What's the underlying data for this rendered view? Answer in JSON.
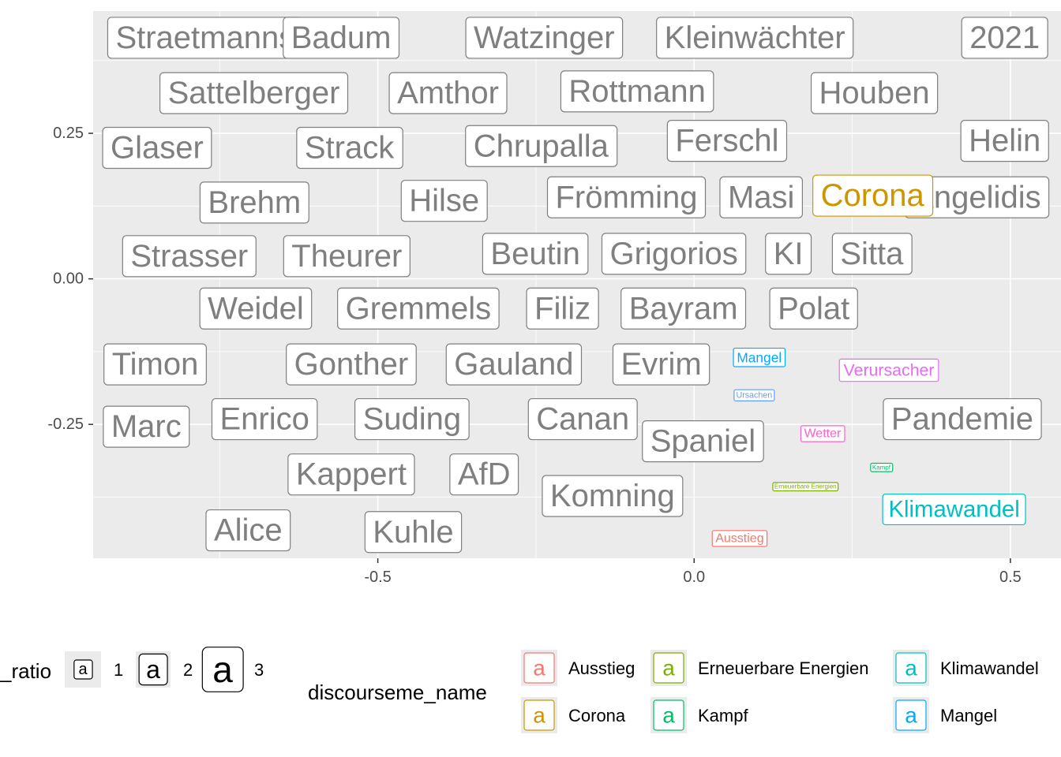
{
  "chart_data": {
    "type": "scatter",
    "subtype": "text-label-scatter",
    "xlim": [
      -0.95,
      0.58
    ],
    "ylim": [
      -0.48,
      0.46
    ],
    "x_ticks": [
      {
        "value": -0.5,
        "label": "-0.5"
      },
      {
        "value": 0.0,
        "label": "0.0"
      },
      {
        "value": 0.5,
        "label": "0.5"
      }
    ],
    "y_ticks": [
      {
        "value": 0.25,
        "label": "0.25"
      },
      {
        "value": 0.0,
        "label": "0.00"
      },
      {
        "value": -0.25,
        "label": "-0.25"
      }
    ],
    "grid": true,
    "legend_position": "bottom",
    "panel_background": "#ebebeb",
    "default_label_color": "#7f7f7f",
    "points": [
      {
        "label": "Straetmanns",
        "x": -0.773,
        "y": 0.414,
        "size": 3,
        "group": null
      },
      {
        "label": "Badum",
        "x": -0.558,
        "y": 0.414,
        "size": 3,
        "group": null
      },
      {
        "label": "Watzinger",
        "x": -0.237,
        "y": 0.414,
        "size": 3,
        "group": null
      },
      {
        "label": "Kleinwächter",
        "x": 0.096,
        "y": 0.414,
        "size": 3,
        "group": null
      },
      {
        "label": "2021",
        "x": 0.491,
        "y": 0.414,
        "size": 3,
        "group": null
      },
      {
        "label": "Sattelberger",
        "x": -0.696,
        "y": 0.319,
        "size": 3,
        "group": null
      },
      {
        "label": "Amthor",
        "x": -0.389,
        "y": 0.319,
        "size": 3,
        "group": null
      },
      {
        "label": "Rottmann",
        "x": -0.09,
        "y": 0.322,
        "size": 3,
        "group": null
      },
      {
        "label": "Houben",
        "x": 0.285,
        "y": 0.319,
        "size": 3,
        "group": null
      },
      {
        "label": "Glaser",
        "x": -0.849,
        "y": 0.225,
        "size": 3,
        "group": null
      },
      {
        "label": "Strack",
        "x": -0.545,
        "y": 0.225,
        "size": 3,
        "group": null
      },
      {
        "label": "Chrupalla",
        "x": -0.242,
        "y": 0.228,
        "size": 3,
        "group": null
      },
      {
        "label": "Ferschl",
        "x": 0.052,
        "y": 0.237,
        "size": 3,
        "group": null
      },
      {
        "label": "Helin",
        "x": 0.491,
        "y": 0.237,
        "size": 3,
        "group": null
      },
      {
        "label": "Brehm",
        "x": -0.695,
        "y": 0.131,
        "size": 3,
        "group": null
      },
      {
        "label": "Hilse",
        "x": -0.395,
        "y": 0.134,
        "size": 3,
        "group": null
      },
      {
        "label": "Frömming",
        "x": -0.107,
        "y": 0.14,
        "size": 3,
        "group": null
      },
      {
        "label": "Masi",
        "x": 0.106,
        "y": 0.14,
        "size": 3,
        "group": null
      },
      {
        "label": "Angelidis",
        "x": 0.447,
        "y": 0.14,
        "size": 3,
        "group": null
      },
      {
        "label": "Corona",
        "x": 0.282,
        "y": 0.143,
        "size": 3,
        "group": "Corona"
      },
      {
        "label": "Strasser",
        "x": -0.798,
        "y": 0.039,
        "size": 3,
        "group": null
      },
      {
        "label": "Theurer",
        "x": -0.549,
        "y": 0.039,
        "size": 3,
        "group": null
      },
      {
        "label": "Beutin",
        "x": -0.251,
        "y": 0.043,
        "size": 3,
        "group": null
      },
      {
        "label": "Grigorios",
        "x": -0.032,
        "y": 0.043,
        "size": 3,
        "group": null
      },
      {
        "label": "KI",
        "x": 0.149,
        "y": 0.043,
        "size": 3,
        "group": null
      },
      {
        "label": "Sitta",
        "x": 0.281,
        "y": 0.043,
        "size": 3,
        "group": null
      },
      {
        "label": "Weidel",
        "x": -0.693,
        "y": -0.051,
        "size": 3,
        "group": null
      },
      {
        "label": "Gremmels",
        "x": -0.436,
        "y": -0.051,
        "size": 3,
        "group": null
      },
      {
        "label": "Filiz",
        "x": -0.208,
        "y": -0.051,
        "size": 3,
        "group": null
      },
      {
        "label": "Bayram",
        "x": -0.017,
        "y": -0.051,
        "size": 3,
        "group": null
      },
      {
        "label": "Polat",
        "x": 0.189,
        "y": -0.051,
        "size": 3,
        "group": null
      },
      {
        "label": "Timon",
        "x": -0.852,
        "y": -0.147,
        "size": 3,
        "group": null
      },
      {
        "label": "Gonther",
        "x": -0.542,
        "y": -0.147,
        "size": 3,
        "group": null
      },
      {
        "label": "Gauland",
        "x": -0.285,
        "y": -0.147,
        "size": 3,
        "group": null
      },
      {
        "label": "Evrim",
        "x": -0.052,
        "y": -0.147,
        "size": 3,
        "group": null
      },
      {
        "label": "Mangel",
        "x": 0.103,
        "y": -0.135,
        "size": 1.3,
        "group": "Mangel"
      },
      {
        "label": "Verursacher",
        "x": 0.308,
        "y": -0.157,
        "size": 1.6,
        "group": "Verursacher"
      },
      {
        "label": "Ursachen",
        "x": 0.095,
        "y": -0.2,
        "size": 0.8,
        "group": "Ursachen"
      },
      {
        "label": "Marc",
        "x": -0.866,
        "y": -0.254,
        "size": 3,
        "group": null
      },
      {
        "label": "Enrico",
        "x": -0.679,
        "y": -0.241,
        "size": 3,
        "group": null
      },
      {
        "label": "Suding",
        "x": -0.446,
        "y": -0.241,
        "size": 3,
        "group": null
      },
      {
        "label": "Canan",
        "x": -0.176,
        "y": -0.241,
        "size": 3,
        "group": null
      },
      {
        "label": "Spaniel",
        "x": 0.014,
        "y": -0.279,
        "size": 3,
        "group": null
      },
      {
        "label": "Wetter",
        "x": 0.203,
        "y": -0.266,
        "size": 1.2,
        "group": "Wetter"
      },
      {
        "label": "Pandemie",
        "x": 0.424,
        "y": -0.241,
        "size": 3,
        "group": null
      },
      {
        "label": "Kampf",
        "x": 0.296,
        "y": -0.324,
        "size": 0.6,
        "group": "Kampf"
      },
      {
        "label": "Kappert",
        "x": -0.542,
        "y": -0.336,
        "size": 3,
        "group": null
      },
      {
        "label": "AfD",
        "x": -0.332,
        "y": -0.336,
        "size": 3,
        "group": null
      },
      {
        "label": "Komning",
        "x": -0.129,
        "y": -0.373,
        "size": 3,
        "group": null
      },
      {
        "label": "Erneuerbare Energien",
        "x": 0.176,
        "y": -0.357,
        "size": 0.6,
        "group": "Erneuerbare Energien"
      },
      {
        "label": "Klimawandel",
        "x": 0.411,
        "y": -0.396,
        "size": 2.2,
        "group": "Klimawandel"
      },
      {
        "label": "Alice",
        "x": -0.705,
        "y": -0.432,
        "size": 3,
        "group": null
      },
      {
        "label": "Kuhle",
        "x": -0.444,
        "y": -0.435,
        "size": 3,
        "group": null
      },
      {
        "label": "Ausstieg",
        "x": 0.072,
        "y": -0.446,
        "size": 1.2,
        "group": "Ausstieg"
      }
    ]
  },
  "colors": {
    "Ausstieg": "#F8766D",
    "Corona": "#CD9600",
    "Erneuerbare Energien": "#7CAE00",
    "Kampf": "#00BE67",
    "Klimawandel": "#00BFC4",
    "Mangel": "#00A9FF",
    "Ursachen": "#619CFF",
    "Verursacher": "#E76BF3",
    "Wetter": "#FF61C3"
  },
  "legend": {
    "size_title": "_ratio",
    "size_items": [
      {
        "label": "1",
        "glyph": "a",
        "size": 1
      },
      {
        "label": "2",
        "glyph": "a",
        "size": 2
      },
      {
        "label": "3",
        "glyph": "a",
        "size": 3
      }
    ],
    "color_title": "discourseme_name",
    "color_items": [
      {
        "label": "Ausstieg",
        "glyph": "a"
      },
      {
        "label": "Corona",
        "glyph": "a"
      },
      {
        "label": "Erneuerbare Energien",
        "glyph": "a"
      },
      {
        "label": "Kampf",
        "glyph": "a"
      },
      {
        "label": "Klimawandel",
        "glyph": "a"
      },
      {
        "label": "Mangel",
        "glyph": "a"
      }
    ]
  }
}
